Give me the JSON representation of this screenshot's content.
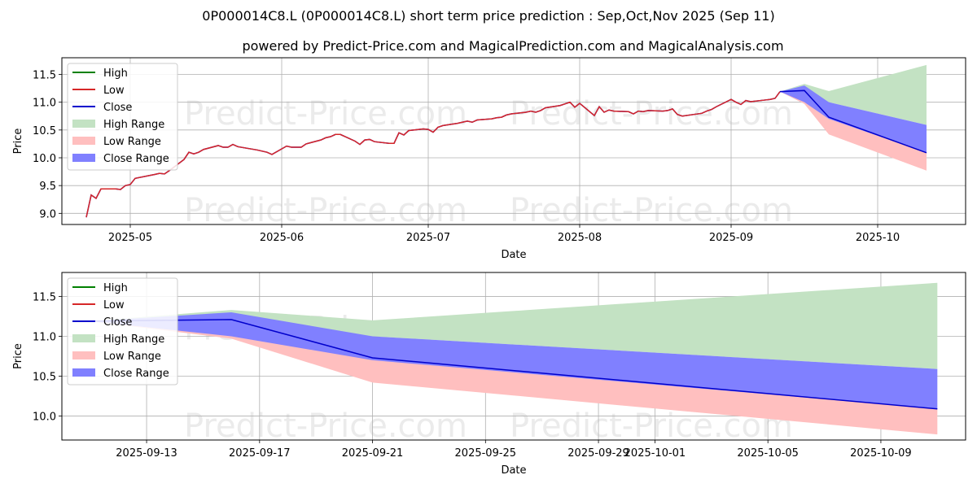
{
  "title": "0P000014C8.L (0P000014C8.L) short term price prediction : Sep,Oct,Nov 2025 (Sep 11)",
  "subtitle": "powered by Predict-Price.com and MagicalPrediction.com and MagicalAnalysis.com",
  "watermark": "Predict-Price.com",
  "colors": {
    "high": "#008000",
    "low": "#d62728",
    "close": "#0000cc",
    "high_range": "#c3e2c3",
    "low_range": "#ffbfbf",
    "close_range": "#8080ff",
    "grid": "#b0b0b0",
    "watermark": "#ebebeb"
  },
  "chart_data": [
    {
      "type": "line",
      "xlabel": "Date",
      "ylabel": "Price",
      "xlim": [
        "2025-04-17",
        "2025-10-19"
      ],
      "ylim": [
        8.8,
        11.8
      ],
      "yticks": [
        9.0,
        9.5,
        10.0,
        10.5,
        11.0,
        11.5
      ],
      "ytick_labels": [
        "9.0",
        "9.5",
        "10.0",
        "10.5",
        "11.0",
        "11.5"
      ],
      "xticks": [
        "2025-05-01",
        "2025-06-01",
        "2025-07-01",
        "2025-08-01",
        "2025-09-01",
        "2025-10-01"
      ],
      "xtick_labels": [
        "2025-05",
        "2025-06",
        "2025-07",
        "2025-08",
        "2025-09",
        "2025-10"
      ],
      "grid": true,
      "legend": {
        "position": "top-left",
        "entries": [
          "High",
          "Low",
          "Close",
          "High Range",
          "Low Range",
          "Close Range"
        ]
      },
      "history": {
        "x": [
          "2025-04-22",
          "2025-04-23",
          "2025-04-24",
          "2025-04-25",
          "2025-04-26",
          "2025-04-28",
          "2025-04-29",
          "2025-04-30",
          "2025-05-01",
          "2025-05-02",
          "2025-05-06",
          "2025-05-07",
          "2025-05-08",
          "2025-05-09",
          "2025-05-12",
          "2025-05-13",
          "2025-05-14",
          "2025-05-15",
          "2025-05-16",
          "2025-05-19",
          "2025-05-20",
          "2025-05-21",
          "2025-05-22",
          "2025-05-23",
          "2025-05-27",
          "2025-05-28",
          "2025-05-29",
          "2025-05-30",
          "2025-06-02",
          "2025-06-03",
          "2025-06-04",
          "2025-06-05",
          "2025-06-06",
          "2025-06-09",
          "2025-06-10",
          "2025-06-11",
          "2025-06-12",
          "2025-06-13",
          "2025-06-16",
          "2025-06-17",
          "2025-06-18",
          "2025-06-19",
          "2025-06-20",
          "2025-06-23",
          "2025-06-24",
          "2025-06-25",
          "2025-06-26",
          "2025-06-27",
          "2025-06-30",
          "2025-07-01",
          "2025-07-02",
          "2025-07-03",
          "2025-07-04",
          "2025-07-07",
          "2025-07-08",
          "2025-07-09",
          "2025-07-10",
          "2025-07-11",
          "2025-07-14",
          "2025-07-15",
          "2025-07-16",
          "2025-07-17",
          "2025-07-18",
          "2025-07-21",
          "2025-07-22",
          "2025-07-23",
          "2025-07-24",
          "2025-07-25",
          "2025-07-28",
          "2025-07-29",
          "2025-07-30",
          "2025-07-31",
          "2025-08-01",
          "2025-08-04",
          "2025-08-05",
          "2025-08-06",
          "2025-08-07",
          "2025-08-08",
          "2025-08-11",
          "2025-08-12",
          "2025-08-13",
          "2025-08-14",
          "2025-08-15",
          "2025-08-18",
          "2025-08-19",
          "2025-08-20",
          "2025-08-21",
          "2025-08-22",
          "2025-08-26",
          "2025-08-27",
          "2025-08-28",
          "2025-08-29",
          "2025-09-01",
          "2025-09-02",
          "2025-09-03",
          "2025-09-04",
          "2025-09-05",
          "2025-09-08",
          "2025-09-09",
          "2025-09-10",
          "2025-09-11"
        ],
        "low": [
          8.93,
          9.33,
          9.27,
          9.44,
          9.44,
          9.44,
          9.43,
          9.5,
          9.52,
          9.63,
          9.7,
          9.72,
          9.71,
          9.77,
          9.97,
          10.1,
          10.07,
          10.1,
          10.15,
          10.22,
          10.19,
          10.19,
          10.24,
          10.2,
          10.14,
          10.12,
          10.1,
          10.06,
          10.21,
          10.19,
          10.19,
          10.19,
          10.25,
          10.32,
          10.36,
          10.38,
          10.42,
          10.42,
          10.3,
          10.24,
          10.32,
          10.33,
          10.29,
          10.26,
          10.26,
          10.45,
          10.41,
          10.49,
          10.52,
          10.51,
          10.46,
          10.55,
          10.58,
          10.62,
          10.64,
          10.66,
          10.64,
          10.68,
          10.7,
          10.72,
          10.73,
          10.77,
          10.79,
          10.82,
          10.84,
          10.82,
          10.85,
          10.9,
          10.94,
          10.97,
          11.0,
          10.91,
          10.98,
          10.76,
          10.92,
          10.82,
          10.86,
          10.84,
          10.83,
          10.79,
          10.84,
          10.83,
          10.85,
          10.84,
          10.85,
          10.88,
          10.78,
          10.75,
          10.8,
          10.84,
          10.87,
          10.92,
          11.05,
          11.0,
          10.96,
          11.03,
          11.01,
          11.04,
          11.05,
          11.07,
          11.19
        ],
        "close": [
          8.93,
          9.33,
          9.27,
          9.44,
          9.44,
          9.44,
          9.43,
          9.5,
          9.52,
          9.63,
          9.7,
          9.72,
          9.71,
          9.77,
          9.97,
          10.1,
          10.07,
          10.1,
          10.15,
          10.22,
          10.19,
          10.19,
          10.24,
          10.2,
          10.14,
          10.12,
          10.1,
          10.06,
          10.21,
          10.19,
          10.19,
          10.19,
          10.25,
          10.32,
          10.36,
          10.38,
          10.42,
          10.42,
          10.3,
          10.24,
          10.32,
          10.33,
          10.29,
          10.26,
          10.26,
          10.45,
          10.41,
          10.49,
          10.52,
          10.51,
          10.46,
          10.55,
          10.58,
          10.62,
          10.64,
          10.66,
          10.64,
          10.68,
          10.7,
          10.72,
          10.73,
          10.77,
          10.79,
          10.82,
          10.84,
          10.82,
          10.85,
          10.9,
          10.94,
          10.97,
          11.0,
          10.91,
          10.98,
          10.76,
          10.92,
          10.82,
          10.86,
          10.84,
          10.83,
          10.79,
          10.84,
          10.83,
          10.85,
          10.84,
          10.85,
          10.88,
          10.78,
          10.75,
          10.8,
          10.84,
          10.87,
          10.92,
          11.05,
          11.0,
          10.96,
          11.03,
          11.01,
          11.04,
          11.05,
          11.07,
          11.19
        ]
      },
      "forecast": {
        "x": [
          "2025-09-11",
          "2025-09-16",
          "2025-09-21",
          "2025-10-11"
        ],
        "close": [
          11.19,
          11.21,
          10.73,
          10.09
        ],
        "high_range": [
          [
            11.19,
            11.19
          ],
          [
            11.21,
            11.33
          ],
          [
            11.0,
            11.2
          ],
          [
            10.59,
            11.67
          ]
        ],
        "low_range": [
          [
            11.19,
            11.19
          ],
          [
            10.97,
            11.21
          ],
          [
            10.42,
            10.73
          ],
          [
            9.77,
            10.09
          ]
        ],
        "close_range": [
          [
            11.19,
            11.19
          ],
          [
            11.0,
            11.3
          ],
          [
            10.7,
            11.0
          ],
          [
            10.09,
            10.59
          ]
        ]
      }
    },
    {
      "type": "line",
      "xlabel": "Date",
      "ylabel": "Price",
      "xlim": [
        "2025-09-10",
        "2025-10-12"
      ],
      "ylim": [
        9.7,
        11.8
      ],
      "yticks": [
        10.0,
        10.5,
        11.0,
        11.5
      ],
      "ytick_labels": [
        "10.0",
        "10.5",
        "11.0",
        "11.5"
      ],
      "xticks": [
        "2025-09-13",
        "2025-09-17",
        "2025-09-21",
        "2025-09-25",
        "2025-09-29",
        "2025-10-01",
        "2025-10-05",
        "2025-10-09"
      ],
      "xtick_labels": [
        "2025-09-13",
        "2025-09-17",
        "2025-09-21",
        "2025-09-25",
        "2025-09-29",
        "2025-10-01",
        "2025-10-05",
        "2025-10-09"
      ],
      "grid": true,
      "legend": {
        "position": "top-left",
        "entries": [
          "High",
          "Low",
          "Close",
          "High Range",
          "Low Range",
          "Close Range"
        ]
      },
      "forecast": {
        "x": [
          "2025-09-11",
          "2025-09-16",
          "2025-09-21",
          "2025-10-11"
        ],
        "close": [
          11.19,
          11.21,
          10.73,
          10.09
        ],
        "high_range": [
          [
            11.19,
            11.19
          ],
          [
            11.21,
            11.33
          ],
          [
            11.0,
            11.2
          ],
          [
            10.59,
            11.67
          ]
        ],
        "low_range": [
          [
            11.19,
            11.19
          ],
          [
            10.97,
            11.21
          ],
          [
            10.42,
            10.73
          ],
          [
            9.77,
            10.09
          ]
        ],
        "close_range": [
          [
            11.19,
            11.19
          ],
          [
            11.0,
            11.3
          ],
          [
            10.7,
            11.0
          ],
          [
            10.09,
            10.59
          ]
        ]
      }
    }
  ]
}
